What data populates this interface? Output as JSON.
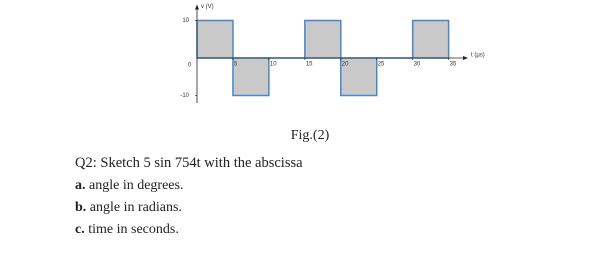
{
  "figure": {
    "y_label": "v (V)",
    "x_label": "t (μs)",
    "origin_label": "0",
    "xlim": [
      0,
      37
    ],
    "ylim": [
      -12,
      14
    ],
    "xticks": [
      5,
      10,
      15,
      20,
      25,
      30,
      35
    ],
    "yticks": [
      10,
      -10
    ],
    "segments": [
      {
        "start": 0,
        "end": 5,
        "value": 10
      },
      {
        "start": 5,
        "end": 10,
        "value": -10
      },
      {
        "start": 10,
        "end": 15,
        "value": 0
      },
      {
        "start": 15,
        "end": 20,
        "value": 10
      },
      {
        "start": 20,
        "end": 25,
        "value": -10
      },
      {
        "start": 25,
        "end": 30,
        "value": 0
      },
      {
        "start": 30,
        "end": 35,
        "value": 10
      }
    ]
  },
  "caption": "Fig.(2)",
  "question": "Q2: Sketch 5 sin 754t with the abscissa",
  "items": [
    {
      "marker": "a.",
      "text": "angle in degrees."
    },
    {
      "marker": "b.",
      "text": "angle in radians."
    },
    {
      "marker": "c.",
      "text": "time in seconds."
    }
  ]
}
